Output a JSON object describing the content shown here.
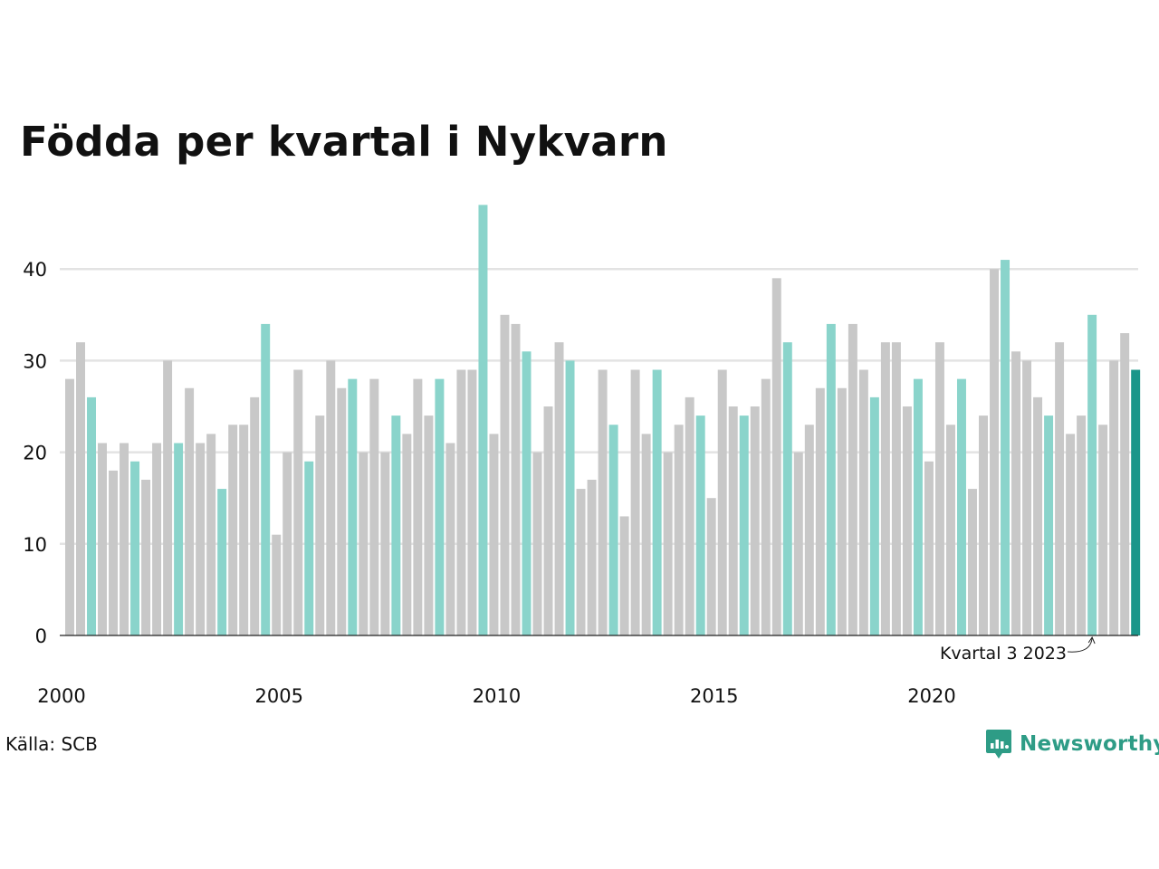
{
  "chart_data": {
    "type": "bar",
    "title": "Födda per kvartal i Nykvarn",
    "xlabel": "",
    "ylabel": "",
    "ylim": [
      0,
      47
    ],
    "yticks": [
      0,
      10,
      20,
      30,
      40
    ],
    "xticks": [
      "2000",
      "2005",
      "2010",
      "2015",
      "2020"
    ],
    "grid": true,
    "legend": "none",
    "start_year": 2000,
    "values": [
      28,
      32,
      26,
      21,
      18,
      21,
      19,
      17,
      21,
      30,
      21,
      27,
      21,
      22,
      16,
      23,
      23,
      26,
      34,
      11,
      20,
      29,
      19,
      24,
      30,
      27,
      28,
      20,
      28,
      20,
      24,
      22,
      28,
      24,
      28,
      21,
      29,
      29,
      47,
      22,
      35,
      34,
      31,
      20,
      25,
      32,
      30,
      16,
      17,
      29,
      23,
      13,
      29,
      22,
      29,
      20,
      23,
      26,
      24,
      15,
      29,
      25,
      24,
      25,
      28,
      39,
      32,
      20,
      23,
      27,
      34,
      27,
      34,
      29,
      26,
      32,
      32,
      25,
      28,
      19,
      32,
      23,
      28,
      16,
      24,
      40,
      41,
      31,
      30,
      26,
      24,
      32,
      22,
      24,
      35,
      23,
      30,
      33,
      29
    ],
    "colors": {
      "default": "#c8c8c8",
      "q3": "#8ad4cb",
      "latest": "#1b968a"
    },
    "annotation": {
      "label": "Kvartal 3 2023",
      "index": 94
    }
  },
  "footer": {
    "source": "Källa: SCB",
    "brand": "Newsworthy"
  }
}
